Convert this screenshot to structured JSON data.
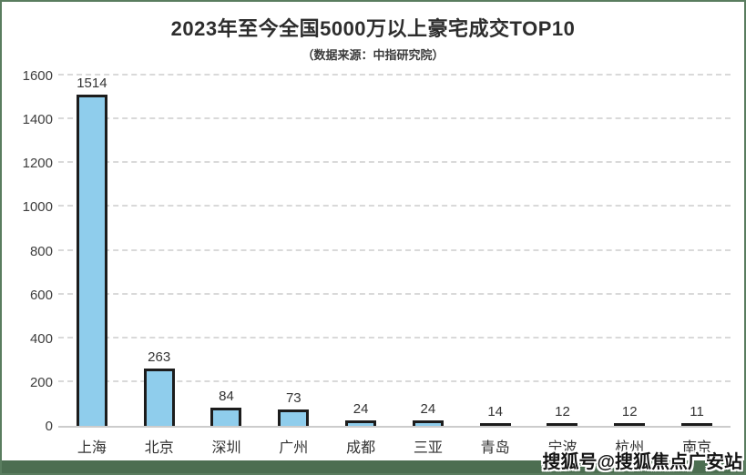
{
  "header": {
    "title": "2023年至今全国5000万以上豪宅成交TOP10",
    "subtitle": "（数据来源：中指研究院）"
  },
  "watermark": "搜狐号@搜狐焦点广安站",
  "chart_data": {
    "type": "bar",
    "title": "2023年至今全国5000万以上豪宅成交TOP10",
    "subtitle": "（数据来源：中指研究院）",
    "categories": [
      "上海",
      "北京",
      "深圳",
      "广州",
      "成都",
      "三亚",
      "青岛",
      "宁波",
      "杭州",
      "南京"
    ],
    "values": [
      1514,
      263,
      84,
      73,
      24,
      24,
      14,
      12,
      12,
      11
    ],
    "data_labels_shown": true,
    "xlabel": "",
    "ylabel": "",
    "ylim": [
      0,
      1600
    ],
    "yticks": [
      0,
      200,
      400,
      600,
      800,
      1000,
      1200,
      1400,
      1600
    ],
    "grid": "horizontal-dashed",
    "legend": "none",
    "bar_fill_color": "#8fcdec",
    "bar_border_color": "#1c1c1c"
  },
  "colors": {
    "page_border": "#5a7d5f",
    "footer_bar": "#4c6e51",
    "gridline": "#d9d9d9",
    "axis_line": "#cccccc",
    "title_text": "#2d2d2d",
    "label_text": "#333333"
  }
}
